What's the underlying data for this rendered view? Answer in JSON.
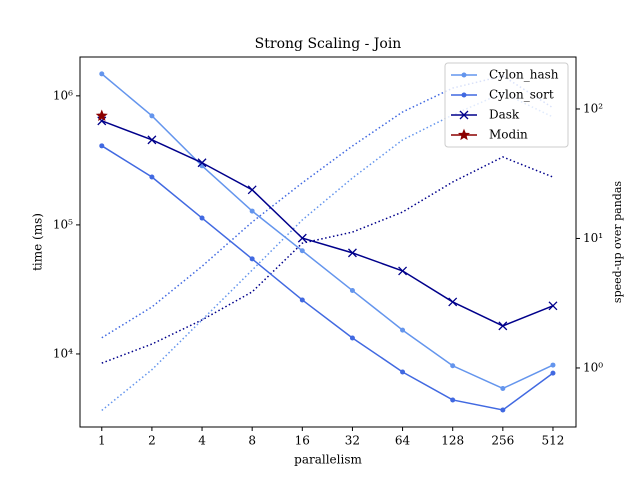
{
  "chart_data": {
    "type": "line",
    "title": "Strong Scaling - Join",
    "x_label": "parallelism",
    "y_label": "time (ms)",
    "y2_label": "speed-up over pandas",
    "x": [
      1,
      2,
      4,
      8,
      16,
      32,
      64,
      128,
      256,
      512
    ],
    "xscale": "log",
    "yscale": "log",
    "y2scale": "log",
    "xlim": [
      0.74,
      704
    ],
    "xticks": [
      1,
      2,
      4,
      8,
      16,
      32,
      64,
      128,
      256,
      512
    ],
    "ylim": [
      2716,
      2000000
    ],
    "yticks": [
      {
        "value": 10000,
        "label": "10⁴"
      },
      {
        "value": 100000,
        "label": "10⁵"
      },
      {
        "value": 1000000,
        "label": "10⁶"
      }
    ],
    "y2lim": [
      0.35,
      252
    ],
    "y2ticks": [
      {
        "value": 1,
        "label": "10⁰"
      },
      {
        "value": 10,
        "label": "10¹"
      },
      {
        "value": 100,
        "label": "10²"
      }
    ],
    "legend": "upper right",
    "grid": false,
    "series": [
      {
        "name": "Cylon_hash",
        "color": "#6495ed",
        "marker": "o",
        "values": [
          1480000,
          700000,
          287000,
          128000,
          63000,
          31000,
          15300,
          8100,
          5400,
          8200
        ]
      },
      {
        "name": "Cylon_sort",
        "color": "#4169e1",
        "marker": "o",
        "values": [
          410000,
          235000,
          113000,
          54500,
          26200,
          13300,
          7250,
          4400,
          3680,
          7100
        ]
      },
      {
        "name": "Dask",
        "color": "#00008b",
        "marker": "x",
        "values": [
          640000,
          456000,
          303000,
          187000,
          79000,
          60700,
          44000,
          25300,
          16500,
          23600
        ]
      },
      {
        "name": "Modin",
        "color": "#8b0000",
        "marker": "*",
        "values": [
          700000,
          null,
          null,
          null,
          null,
          null,
          null,
          null,
          null,
          null
        ]
      }
    ],
    "speedup_series": [
      {
        "color": "#6495ed",
        "axis": "y2",
        "linestyle": "dotted",
        "values": [
          0.47,
          0.97,
          2.35,
          5.7,
          13.9,
          29.3,
          57.7,
          90,
          133,
          86.7
        ]
      },
      {
        "color": "#4169e1",
        "axis": "y2",
        "linestyle": "dotted",
        "values": [
          1.71,
          2.96,
          6.1,
          13.4,
          26.9,
          51.8,
          94.8,
          145,
          180,
          102
        ]
      },
      {
        "color": "#00008b",
        "axis": "y2",
        "linestyle": "dotted",
        "values": [
          1.09,
          1.53,
          2.35,
          3.87,
          9.2,
          11.2,
          16.0,
          27.3,
          42.6,
          29.8
        ]
      }
    ]
  }
}
